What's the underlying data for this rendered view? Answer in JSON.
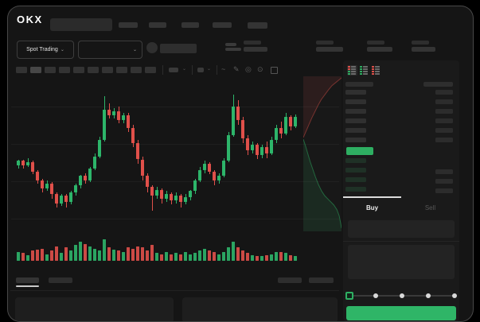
{
  "colors": {
    "green": "#2eaf62",
    "red": "#e1514a",
    "candle_green": "#2db56a",
    "candle_red": "#e0504a",
    "buy_button": "#2fb567"
  },
  "nav": {
    "logo": "OKX"
  },
  "market_selector": {
    "label": "Spot Trading",
    "chevron": "⌄"
  },
  "pair_dropdown": {
    "chevron": "⌄"
  },
  "chart_toolbar": {
    "timeframe_count": 10,
    "active_timeframe_index": 1,
    "icons": [
      {
        "name": "indicators-dropdown-chevron",
        "glyph": "⌄"
      },
      {
        "name": "chart-type-dropdown-chevron",
        "glyph": "⌄"
      },
      {
        "name": "line-tool-icon",
        "glyph": "~"
      },
      {
        "name": "draw-icon",
        "glyph": "✎"
      },
      {
        "name": "camera-icon",
        "glyph": "◎"
      },
      {
        "name": "settings-icon",
        "glyph": "⊙"
      }
    ]
  },
  "order_book": {
    "mode_icons": [
      {
        "name": "book-combined-icon",
        "rows": [
          "r",
          "r",
          "g",
          "g"
        ]
      },
      {
        "name": "book-bids-icon",
        "rows": [
          "g",
          "g",
          "g",
          "g"
        ]
      },
      {
        "name": "book-asks-icon",
        "rows": [
          "r",
          "r",
          "r",
          "r"
        ]
      }
    ],
    "ask_row_count": 6,
    "bid_row_count": 4,
    "bid_right_row_count": 3
  },
  "trade_panel": {
    "buy_tab": "Buy",
    "sell_tab": "Sell",
    "percent_stops": [
      0,
      25,
      50,
      75,
      100
    ],
    "selected_percent": 0
  },
  "chart_data": {
    "type": "candlestick",
    "title": "",
    "x": "time (no labels visible)",
    "y_range": [
      0,
      100
    ],
    "grid": true,
    "candles": [
      [
        41,
        44,
        39,
        45
      ],
      [
        44,
        41,
        39,
        45
      ],
      [
        41,
        43,
        40,
        46
      ],
      [
        43,
        37,
        35,
        44
      ],
      [
        37,
        31,
        29,
        38
      ],
      [
        31,
        26,
        23,
        32
      ],
      [
        26,
        29,
        24,
        31
      ],
      [
        29,
        22,
        19,
        30
      ],
      [
        22,
        16,
        13,
        23
      ],
      [
        16,
        21,
        14,
        22
      ],
      [
        21,
        17,
        13,
        22
      ],
      [
        17,
        23,
        15,
        24
      ],
      [
        23,
        28,
        21,
        29
      ],
      [
        28,
        34,
        26,
        35
      ],
      [
        34,
        31,
        29,
        36
      ],
      [
        31,
        39,
        30,
        40
      ],
      [
        39,
        47,
        38,
        49
      ],
      [
        47,
        58,
        46,
        60
      ],
      [
        58,
        78,
        57,
        87
      ],
      [
        78,
        74,
        72,
        82
      ],
      [
        74,
        77,
        72,
        79
      ],
      [
        77,
        71,
        69,
        80
      ],
      [
        71,
        74,
        69,
        76
      ],
      [
        74,
        66,
        63,
        76
      ],
      [
        66,
        56,
        53,
        68
      ],
      [
        56,
        45,
        42,
        58
      ],
      [
        45,
        34,
        31,
        47
      ],
      [
        34,
        27,
        23,
        36
      ],
      [
        27,
        21,
        11,
        28
      ],
      [
        21,
        25,
        19,
        27
      ],
      [
        25,
        19,
        16,
        26
      ],
      [
        19,
        22,
        17,
        24
      ],
      [
        22,
        18,
        15,
        23
      ],
      [
        18,
        21,
        16,
        23
      ],
      [
        21,
        17,
        13,
        22
      ],
      [
        17,
        20,
        15,
        22
      ],
      [
        20,
        24,
        18,
        25
      ],
      [
        24,
        31,
        22,
        32
      ],
      [
        31,
        38,
        30,
        40
      ],
      [
        38,
        42,
        36,
        44
      ],
      [
        42,
        37,
        35,
        43
      ],
      [
        37,
        31,
        28,
        38
      ],
      [
        31,
        34,
        29,
        36
      ],
      [
        34,
        44,
        33,
        46
      ],
      [
        44,
        61,
        43,
        63
      ],
      [
        61,
        80,
        60,
        88
      ],
      [
        80,
        71,
        68,
        84
      ],
      [
        71,
        59,
        56,
        73
      ],
      [
        59,
        51,
        48,
        61
      ],
      [
        51,
        55,
        49,
        57
      ],
      [
        55,
        48,
        45,
        56
      ],
      [
        48,
        53,
        46,
        55
      ],
      [
        53,
        49,
        46,
        57
      ],
      [
        49,
        58,
        48,
        60
      ],
      [
        58,
        66,
        56,
        68
      ],
      [
        66,
        62,
        59,
        70
      ],
      [
        62,
        73,
        61,
        76
      ],
      [
        73,
        67,
        64,
        74
      ],
      [
        67,
        73,
        66,
        75
      ]
    ],
    "volumes": [
      8,
      7,
      5,
      9,
      10,
      11,
      6,
      9,
      13,
      7,
      12,
      9,
      14,
      17,
      15,
      13,
      11,
      9,
      19,
      12,
      10,
      9,
      8,
      12,
      11,
      13,
      12,
      9,
      14,
      7,
      6,
      8,
      6,
      7,
      6,
      8,
      6,
      7,
      9,
      11,
      9,
      8,
      6,
      8,
      12,
      17,
      12,
      9,
      7,
      5,
      4,
      4,
      5,
      6,
      8,
      8,
      7,
      5,
      4
    ],
    "depth": {
      "asks": [
        [
          0,
          39.5
        ],
        [
          8,
          35
        ],
        [
          15,
          31
        ],
        [
          22,
          27
        ],
        [
          30,
          23
        ],
        [
          38,
          19
        ],
        [
          47,
          15
        ],
        [
          56,
          12
        ],
        [
          65,
          9
        ],
        [
          75,
          6
        ],
        [
          85,
          4
        ],
        [
          95,
          2
        ],
        [
          100,
          1
        ]
      ],
      "bids": [
        [
          0,
          40.5
        ],
        [
          6,
          45
        ],
        [
          12,
          50
        ],
        [
          18,
          55
        ],
        [
          25,
          60
        ],
        [
          32,
          65
        ],
        [
          40,
          70
        ],
        [
          48,
          74
        ],
        [
          56,
          77
        ],
        [
          64,
          79
        ],
        [
          72,
          81
        ],
        [
          80,
          83
        ],
        [
          88,
          86
        ],
        [
          94,
          90
        ],
        [
          98,
          95
        ],
        [
          100,
          98
        ]
      ]
    }
  }
}
